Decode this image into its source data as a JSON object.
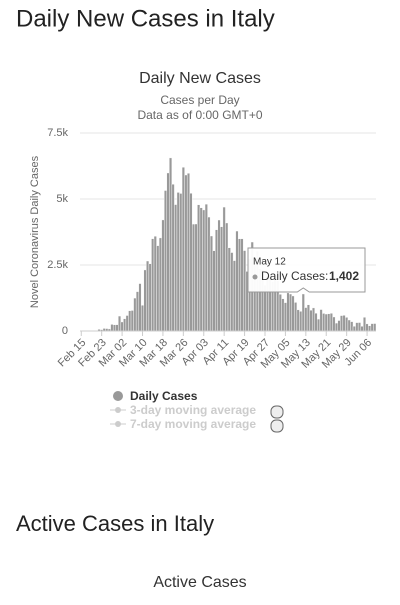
{
  "page": {
    "heading": "Daily New Cases in Italy",
    "next_heading": "Active Cases in Italy",
    "next_chart_title": "Active Cases"
  },
  "chart_data": {
    "type": "bar",
    "title": "Daily New Cases",
    "subtitle": [
      "Cases per Day",
      "Data as of 0:00 GMT+0"
    ],
    "ylabel": "Novel Coronavirus Daily Cases",
    "categories": [
      "Feb 15",
      null,
      null,
      null,
      null,
      null,
      null,
      null,
      "Feb 23",
      null,
      null,
      null,
      null,
      null,
      null,
      null,
      "Mar 02",
      null,
      null,
      null,
      null,
      null,
      null,
      null,
      "Mar 10",
      null,
      null,
      null,
      null,
      null,
      null,
      null,
      "Mar 18",
      null,
      null,
      null,
      null,
      null,
      null,
      null,
      "Mar 26",
      null,
      null,
      null,
      null,
      null,
      null,
      null,
      "Apr 03",
      null,
      null,
      null,
      null,
      null,
      null,
      null,
      "Apr 11",
      null,
      null,
      null,
      null,
      null,
      null,
      null,
      "Apr 19",
      null,
      null,
      null,
      null,
      null,
      null,
      null,
      "Apr 27",
      null,
      null,
      null,
      null,
      null,
      null,
      null,
      "May 05",
      null,
      null,
      null,
      null,
      null,
      null,
      null,
      "May 13",
      null,
      null,
      null,
      null,
      null,
      null,
      null,
      "May 21",
      null,
      null,
      null,
      null,
      null,
      null,
      null,
      "May 29",
      null,
      null,
      null,
      null,
      null,
      null,
      null,
      "Jun 06",
      null,
      null,
      null
    ],
    "series": [
      {
        "name": "Daily Cases",
        "color": "#999999",
        "values": [
          0,
          0,
          0,
          0,
          0,
          0,
          17,
          62,
          53,
          97,
          93,
          78,
          250,
          238,
          240,
          566,
          342,
          466,
          587,
          769,
          778,
          1247,
          1492,
          1797,
          977,
          2313,
          2651,
          2547,
          3497,
          3590,
          3233,
          3526,
          4207,
          5322,
          5986,
          6557,
          5560,
          4789,
          5249,
          5210,
          6203,
          5909,
          5974,
          5217,
          4050,
          4053,
          4782,
          4668,
          4585,
          4805,
          4316,
          3599,
          3039,
          3836,
          4204,
          3951,
          4694,
          4092,
          3153,
          2972,
          2667,
          3786,
          3493,
          3491,
          3047,
          2256,
          2729,
          3370,
          2646,
          3021,
          2357,
          2324,
          1739,
          2091,
          2086,
          1872,
          1965,
          1900,
          1389,
          1221,
          1075,
          1444,
          1401,
          1327,
          1083,
          802,
          744,
          1402,
          888,
          992,
          789,
          875,
          675,
          451,
          813,
          665,
          642,
          652,
          669,
          531,
          300,
          397,
          584,
          593,
          516,
          416,
          355,
          178,
          318,
          321,
          177,
          518,
          270,
          197,
          280,
          283
        ]
      }
    ],
    "inactive_legend": [
      "3-day moving average",
      "7-day moving average"
    ],
    "ylim": [
      0,
      7500
    ],
    "yticks": [
      0,
      {
        "value": 2500,
        "label": "2.5k"
      },
      {
        "value": 5000,
        "label": "5k"
      },
      {
        "value": 7500,
        "label": "7.5k"
      }
    ],
    "grid": true,
    "tooltip": {
      "index": 87,
      "date": "May 12",
      "name": "Daily Cases:",
      "value_label": "1,402"
    }
  }
}
